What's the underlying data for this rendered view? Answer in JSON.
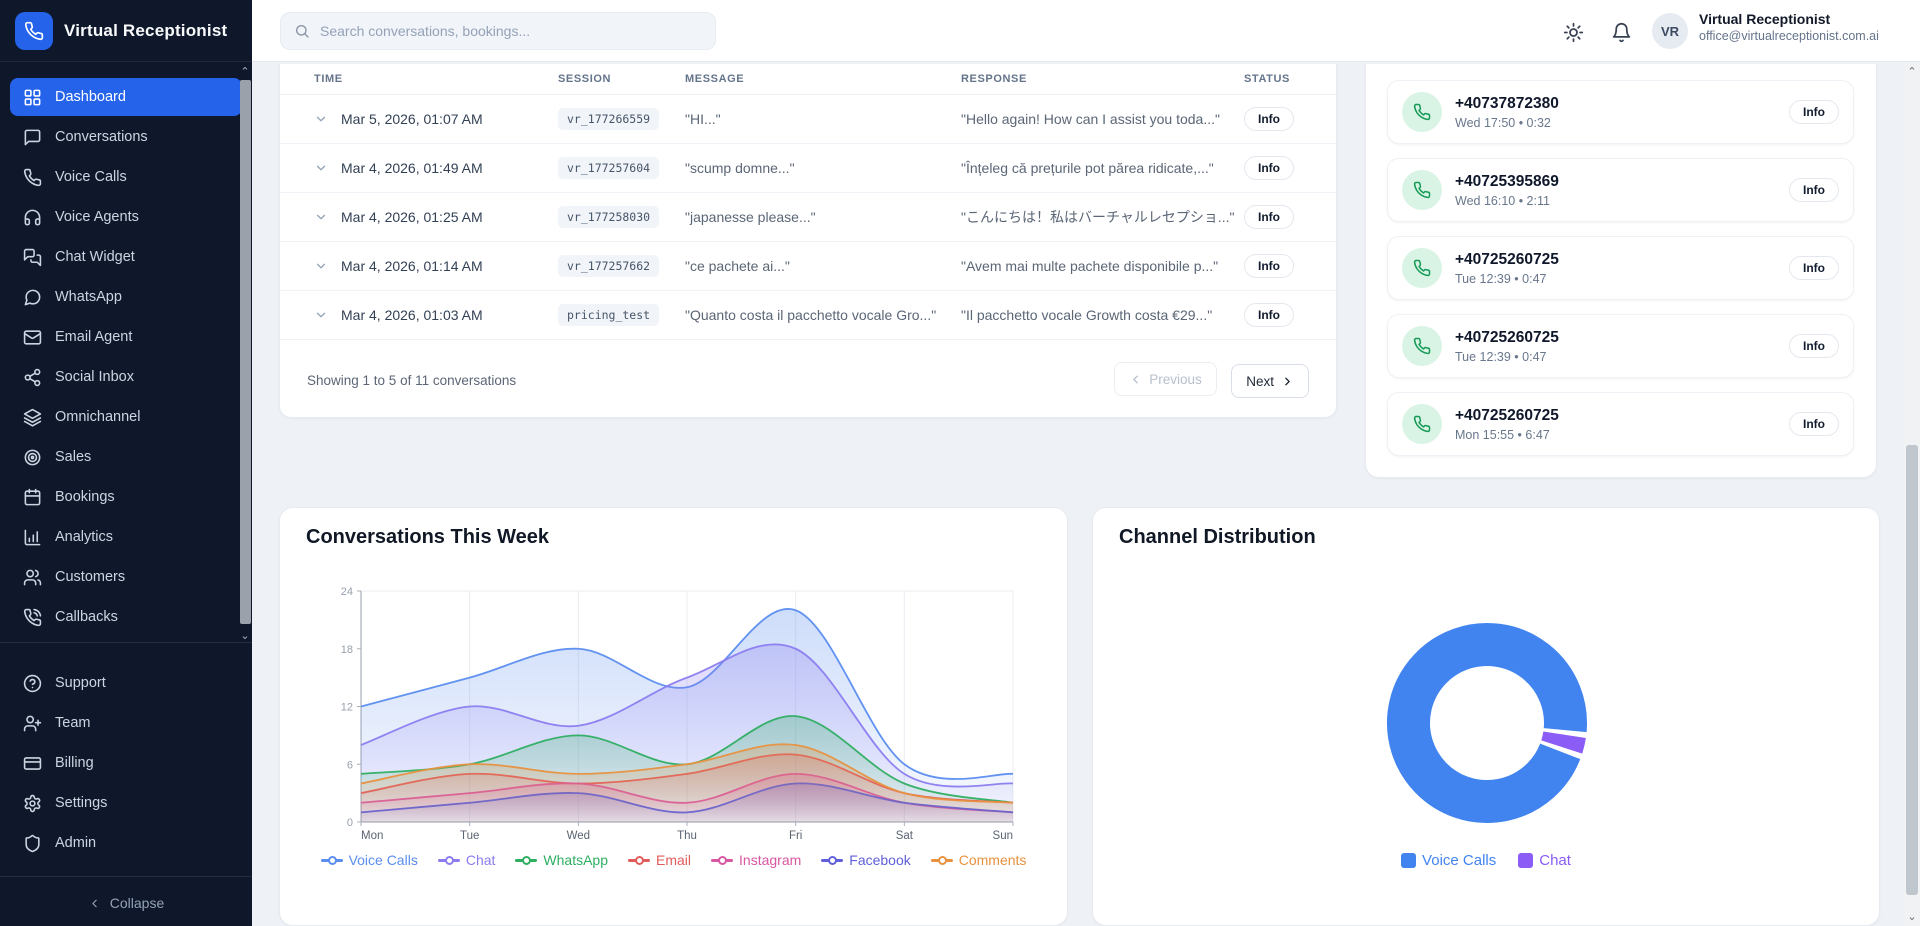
{
  "app": {
    "name": "Virtual Receptionist"
  },
  "topbar": {
    "search_placeholder": "Search conversations, bookings...",
    "user": {
      "initials": "VR",
      "name": "Virtual Receptionist",
      "email": "office@virtualreceptionist.com.ai"
    }
  },
  "sidebar": {
    "items": [
      {
        "label": "Dashboard",
        "icon": "dashboard-icon",
        "active": true
      },
      {
        "label": "Conversations",
        "icon": "conversations-icon",
        "active": false
      },
      {
        "label": "Voice Calls",
        "icon": "phone-icon",
        "active": false
      },
      {
        "label": "Voice Agents",
        "icon": "headphones-icon",
        "active": false
      },
      {
        "label": "Chat Widget",
        "icon": "chat-widget-icon",
        "active": false
      },
      {
        "label": "WhatsApp",
        "icon": "message-circle-icon",
        "active": false
      },
      {
        "label": "Email Agent",
        "icon": "mail-icon",
        "active": false
      },
      {
        "label": "Social Inbox",
        "icon": "share-icon",
        "active": false
      },
      {
        "label": "Omnichannel",
        "icon": "layers-icon",
        "active": false
      },
      {
        "label": "Sales",
        "icon": "target-icon",
        "active": false
      },
      {
        "label": "Bookings",
        "icon": "calendar-icon",
        "active": false
      },
      {
        "label": "Analytics",
        "icon": "bar-chart-icon",
        "active": false
      },
      {
        "label": "Customers",
        "icon": "users-icon",
        "active": false
      },
      {
        "label": "Callbacks",
        "icon": "phone-callback-icon",
        "active": false
      }
    ],
    "secondary_items": [
      {
        "label": "Support",
        "icon": "help-circle-icon"
      },
      {
        "label": "Team",
        "icon": "user-plus-icon"
      },
      {
        "label": "Billing",
        "icon": "credit-card-icon"
      },
      {
        "label": "Settings",
        "icon": "gear-icon"
      },
      {
        "label": "Admin",
        "icon": "shield-icon"
      }
    ],
    "collapse_label": "Collapse"
  },
  "conversations_table": {
    "columns": [
      "TIME",
      "SESSION",
      "MESSAGE",
      "RESPONSE",
      "STATUS"
    ],
    "rows": [
      {
        "time": "Mar 5, 2026, 01:07 AM",
        "session": "vr_177266559",
        "message": "\"HI...\"",
        "response": "\"Hello again! How can I assist you toda...\"",
        "status_label": "Info"
      },
      {
        "time": "Mar 4, 2026, 01:49 AM",
        "session": "vr_177257604",
        "message": "\"scump domne...\"",
        "response": "\"Înțeleg că prețurile pot părea ridicate,...\"",
        "status_label": "Info"
      },
      {
        "time": "Mar 4, 2026, 01:25 AM",
        "session": "vr_177258030",
        "message": "\"japanesse please...\"",
        "response": "\"こんにちは！私はバーチャルレセプショ...\"",
        "status_label": "Info"
      },
      {
        "time": "Mar 4, 2026, 01:14 AM",
        "session": "vr_177257662",
        "message": "\"ce pachete ai...\"",
        "response": "\"Avem mai multe pachete disponibile p...\"",
        "status_label": "Info"
      },
      {
        "time": "Mar 4, 2026, 01:03 AM",
        "session": "pricing_test",
        "message": "\"Quanto costa il pacchetto vocale Gro...\"",
        "response": "\"Il pacchetto vocale Growth costa €29...\"",
        "status_label": "Info"
      }
    ],
    "pagination": {
      "summary": "Showing 1 to 5 of 11 conversations",
      "previous_label": "Previous",
      "next_label": "Next"
    }
  },
  "calls_panel": {
    "calls": [
      {
        "number": "+40737872380",
        "meta": "Wed 17:50 • 0:32",
        "info_label": "Info"
      },
      {
        "number": "+40725395869",
        "meta": "Wed 16:10 • 2:11",
        "info_label": "Info"
      },
      {
        "number": "+40725260725",
        "meta": "Tue 12:39 • 0:47",
        "info_label": "Info"
      },
      {
        "number": "+40725260725",
        "meta": "Tue 12:39 • 0:47",
        "info_label": "Info"
      },
      {
        "number": "+40725260725",
        "meta": "Mon 15:55 • 6:47",
        "info_label": "Info"
      }
    ]
  },
  "chart_data": [
    {
      "type": "area",
      "title": "Conversations This Week",
      "categories": [
        "Mon",
        "Tue",
        "Wed",
        "Thu",
        "Fri",
        "Sat",
        "Sun"
      ],
      "ylim": [
        0,
        24
      ],
      "yticks": [
        0,
        6,
        12,
        18,
        24
      ],
      "grid": "vertical",
      "legend_position": "bottom",
      "series": [
        {
          "name": "Voice Calls",
          "color": "#5b8def",
          "values": [
            12,
            15,
            18,
            14,
            22,
            6,
            5
          ]
        },
        {
          "name": "Chat",
          "color": "#8b7cf0",
          "values": [
            8,
            12,
            10,
            15,
            18,
            5,
            4
          ]
        },
        {
          "name": "WhatsApp",
          "color": "#2fae62",
          "values": [
            5,
            6,
            9,
            6,
            11,
            4,
            2
          ]
        },
        {
          "name": "Email",
          "color": "#e25b5b",
          "values": [
            3,
            5,
            4,
            5,
            7,
            3,
            2
          ]
        },
        {
          "name": "Instagram",
          "color": "#d957a0",
          "values": [
            2,
            3,
            4,
            2,
            5,
            2,
            1
          ]
        },
        {
          "name": "Facebook",
          "color": "#5f5fd9",
          "values": [
            1,
            2,
            3,
            1,
            4,
            2,
            1
          ]
        },
        {
          "name": "Comments",
          "color": "#e8913f",
          "values": [
            4,
            6,
            5,
            6,
            8,
            3,
            2
          ]
        }
      ]
    },
    {
      "type": "donut",
      "title": "Channel Distribution",
      "slices": [
        {
          "label": "Voice Calls",
          "value": 96.5,
          "color": "#4184f0"
        },
        {
          "label": "Chat",
          "value": 3.5,
          "color": "#8b5cf6"
        }
      ],
      "legend_position": "bottom"
    }
  ],
  "scrollbars": {
    "up_glyph": "⌃",
    "down_glyph": "⌄"
  },
  "colors": {
    "accent": "#2563eb",
    "sidebar_bg": "#0f172a",
    "page_bg": "#eef1f6",
    "call_green": "#169a57",
    "donut_blue": "#4184f0",
    "donut_purple": "#8b5cf6"
  }
}
